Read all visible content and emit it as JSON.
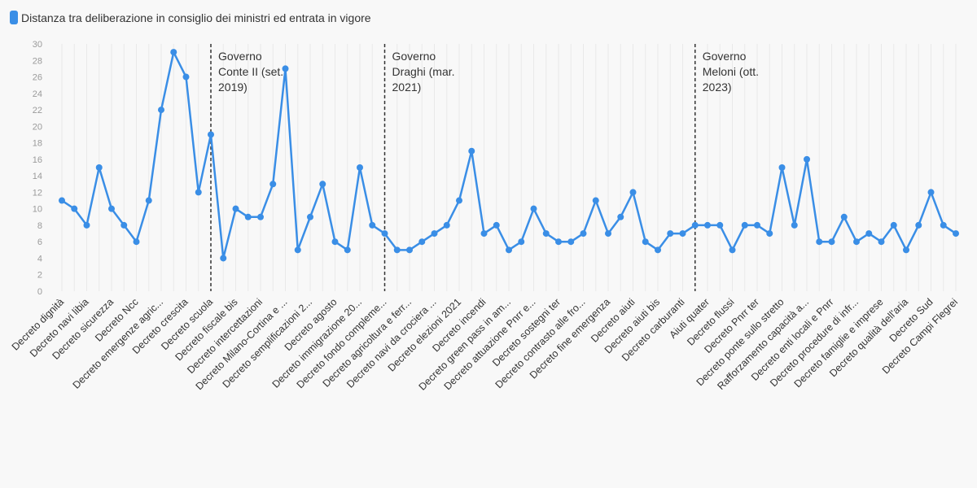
{
  "chart_data": {
    "type": "line",
    "title": "",
    "series": [
      {
        "name": "Distanza tra deliberazione in consiglio dei ministri ed entrata in vigore",
        "color": "#3a8ee6",
        "values": [
          11,
          10,
          8,
          15,
          10,
          8,
          6,
          11,
          22,
          29,
          26,
          12,
          19,
          4,
          10,
          9,
          9,
          13,
          27,
          5,
          9,
          13,
          6,
          5,
          15,
          8,
          7,
          5,
          5,
          6,
          7,
          8,
          11,
          17,
          7,
          8,
          5,
          6,
          10,
          7,
          6,
          6,
          7,
          11,
          7,
          9,
          12,
          6,
          5,
          7,
          7,
          8,
          8,
          8,
          5,
          8,
          8,
          7,
          15,
          8,
          16,
          6,
          6,
          9,
          6,
          7,
          6,
          8,
          5,
          8,
          12,
          8,
          7
        ]
      }
    ],
    "categories": [
      "Decreto dignità",
      "",
      "Decreto navi libia",
      "",
      "Decreto sicurezza",
      "",
      "Decreto Ncc",
      "",
      "Decreto emergenze agric...",
      "",
      "Decreto crescita",
      "",
      "Decreto scuola",
      "",
      "Decreto fiscale bis",
      "",
      "Decreto intercettazioni",
      "",
      "Decreto Milano-Cortina e ...",
      "",
      "Decreto semplificazioni 2...",
      "",
      "Decreto agosto",
      "",
      "Decreto immigrazione 20...",
      "",
      "Decreto fondo compleme...",
      "",
      "Decreto agricoltura e ferr...",
      "",
      "Decreto navi da crociera ...",
      "",
      "Decreto elezioni 2021",
      "",
      "Decreto incendi",
      "",
      "Decreto green pass in am...",
      "",
      "Decreto attuazione Pnrr e...",
      "",
      "Decreto sostegni ter",
      "",
      "Decreto contrasto alle fro...",
      "",
      "Decreto fine emergenza",
      "",
      "Decreto aiuti",
      "",
      "Decreto aiuti bis",
      "",
      "Decreto carburanti",
      "",
      "Aiuti quater",
      "",
      "Decreto flussi",
      "",
      "Decreto Pnrr ter",
      "",
      "Decreto ponte sullo stretto",
      "",
      "Rafforzamento capacità a...",
      "",
      "Decreto enti locali e Pnrr",
      "",
      "Decreto procedure di infr...",
      "",
      "Decreto famiglie e imprese",
      "",
      "Decreto qualità dell'aria",
      "",
      "Decreto Sud",
      "",
      "Decreto Campi Flegrei"
    ],
    "ylim": [
      0,
      30
    ],
    "yticks": [
      0,
      2,
      4,
      6,
      8,
      10,
      12,
      14,
      16,
      18,
      20,
      22,
      24,
      26,
      28,
      30
    ],
    "grid": true,
    "legend": "top-left",
    "annotations": [
      {
        "index": 12,
        "text": [
          "Governo",
          "Conte II (set.",
          "2019)"
        ]
      },
      {
        "index": 26,
        "text": [
          "Governo",
          "Draghi (mar.",
          "2021)"
        ]
      },
      {
        "index": 51,
        "text": [
          "Governo",
          "Meloni (ott.",
          "2023)"
        ]
      }
    ]
  }
}
